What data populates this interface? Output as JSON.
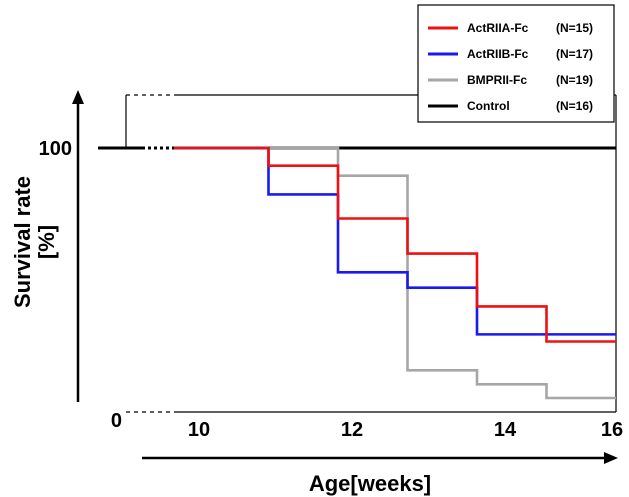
{
  "chart_data": {
    "type": "line",
    "step": true,
    "xlabel": "Age[weeks]",
    "ylabel_line1": "Survival rate",
    "ylabel_line2": "[%]",
    "xlim": [
      9.1,
      16
    ],
    "ylim": [
      0,
      120
    ],
    "x_ticks": [
      10,
      12,
      14,
      16
    ],
    "y_ticks": [
      0,
      100
    ],
    "grid": false,
    "legend_position": "top-right",
    "series": [
      {
        "name": "ActRIIA-Fc",
        "n_label": "(N=15)",
        "color": "#ee1111",
        "x": [
          9.1,
          11,
          11,
          12,
          12,
          13,
          13,
          14,
          14,
          15,
          15,
          16
        ],
        "y": [
          100,
          100,
          93.3,
          93.3,
          73.3,
          73.3,
          60,
          60,
          40,
          40,
          26.7,
          26.7
        ]
      },
      {
        "name": "ActRIIB-Fc",
        "n_label": "(N=17)",
        "color": "#1a1aee",
        "x": [
          9.1,
          11,
          11,
          12,
          12,
          13,
          13,
          14,
          14,
          16
        ],
        "y": [
          100,
          100,
          82.4,
          82.4,
          52.9,
          52.9,
          47.1,
          47.1,
          29.4,
          29.4
        ]
      },
      {
        "name": "BMPRII-Fc",
        "n_label": "(N=19)",
        "color": "#a6a6a6",
        "x": [
          9.1,
          12,
          12,
          13,
          13,
          14,
          14,
          15,
          15,
          16
        ],
        "y": [
          100,
          100,
          89.5,
          89.5,
          15.8,
          15.8,
          10.5,
          10.5,
          5.3,
          5.3
        ]
      },
      {
        "name": "Control",
        "n_label": "(N=16)",
        "color": "#000000",
        "x": [
          9.1,
          16
        ],
        "y": [
          100,
          100
        ]
      }
    ]
  }
}
